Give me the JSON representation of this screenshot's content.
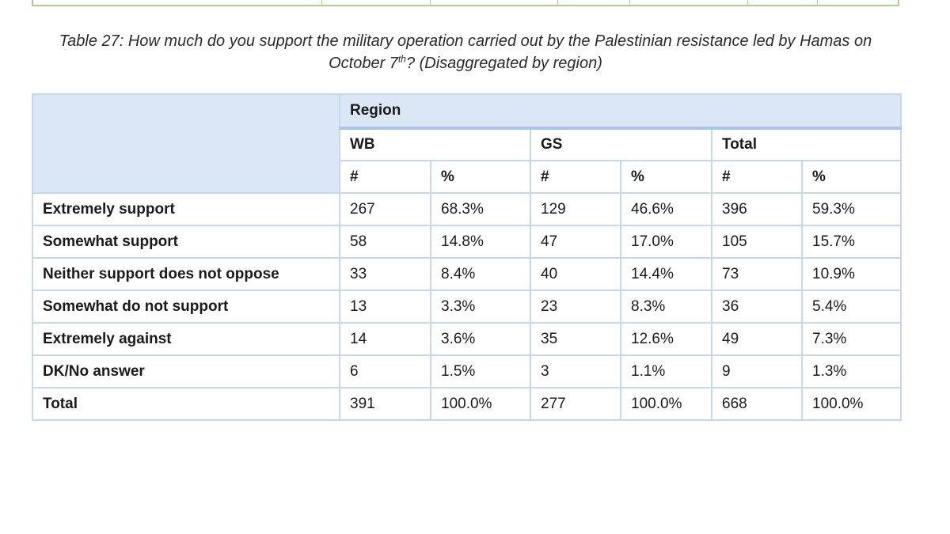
{
  "caption": {
    "line1": "Table 27: How much do you support the military operation carried out by the Palestinian resistance led by Hamas on",
    "line2_pre": "October 7",
    "line2_sup": "th",
    "line2_post": "? (Disaggregated by region)"
  },
  "table": {
    "region_header": "Region",
    "groups": [
      "WB",
      "GS",
      "Total"
    ],
    "sub_headers": [
      "#",
      "%",
      "#",
      "%",
      "#",
      "%"
    ],
    "rows": [
      {
        "label": "Extremely support",
        "cells": [
          "267",
          "68.3%",
          "129",
          "46.6%",
          "396",
          "59.3%"
        ]
      },
      {
        "label": "Somewhat support",
        "cells": [
          "58",
          "14.8%",
          "47",
          "17.0%",
          "105",
          "15.7%"
        ]
      },
      {
        "label": "Neither support does not oppose",
        "cells": [
          "33",
          "8.4%",
          "40",
          "14.4%",
          "73",
          "10.9%"
        ]
      },
      {
        "label": "Somewhat do not support",
        "cells": [
          "13",
          "3.3%",
          "23",
          "8.3%",
          "36",
          "5.4%"
        ]
      },
      {
        "label": "Extremely against",
        "cells": [
          "14",
          "3.6%",
          "35",
          "12.6%",
          "49",
          "7.3%"
        ]
      },
      {
        "label": "DK/No answer",
        "cells": [
          "6",
          "1.5%",
          "3",
          "1.1%",
          "9",
          "1.3%"
        ]
      },
      {
        "label": "Total",
        "cells": [
          "391",
          "100.0%",
          "277",
          "100.0%",
          "668",
          "100.0%"
        ]
      }
    ]
  },
  "colors": {
    "header_fill": "#dbe7f6",
    "grid": "#c5d9ee",
    "previous_table_border": "#a9d08e"
  }
}
